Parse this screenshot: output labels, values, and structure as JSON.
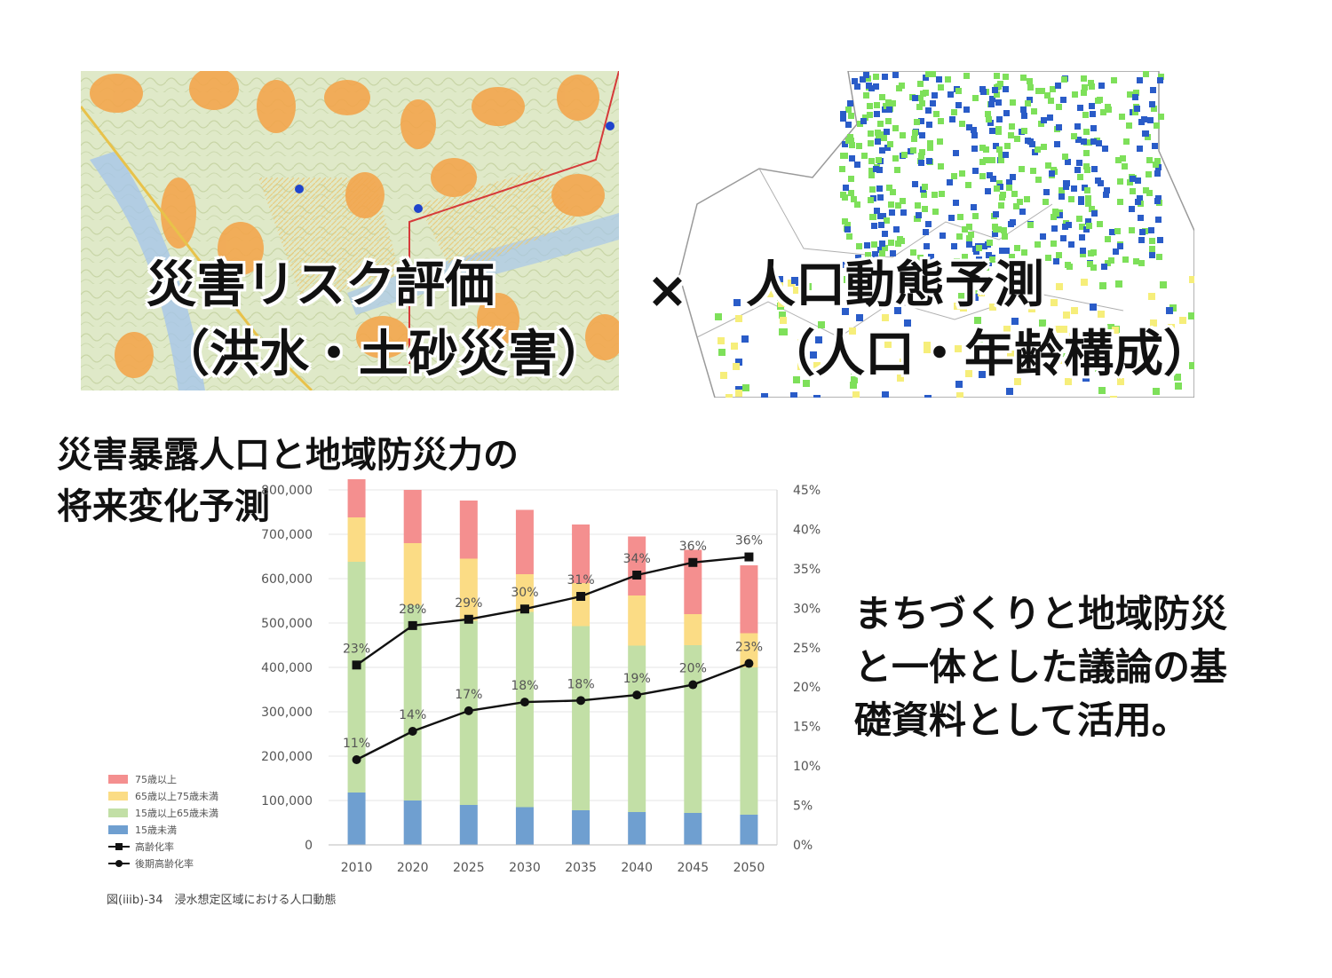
{
  "top": {
    "left_title": "災害リスク評価",
    "left_subtitle": "（洪水・土砂災害）",
    "operator": "×",
    "right_title": "人口動態予測",
    "right_subtitle": "（人口・年齢構成）"
  },
  "section_heading": {
    "line1": "災害暴露人口と地域防災力の",
    "line2": "将来変化予測"
  },
  "side_note": {
    "line1": "まちづくりと地域防災",
    "line2": "と一体とした議論の基",
    "line3": "礎資料として活用。"
  },
  "chart_data": {
    "type": "bar",
    "stacked": true,
    "categories": [
      "2010",
      "2020",
      "2025",
      "2030",
      "2035",
      "2040",
      "2045",
      "2050"
    ],
    "series": [
      {
        "name": "15歳未満",
        "color": "#6f9fd0",
        "values": [
          118000,
          100000,
          90000,
          85000,
          78000,
          74000,
          72000,
          68000
        ]
      },
      {
        "name": "15歳以上65歳未満",
        "color": "#c2dfa6",
        "values": [
          520000,
          440000,
          415000,
          440000,
          415000,
          375000,
          378000,
          332000
        ]
      },
      {
        "name": "65歳以上75歳未満",
        "color": "#fbdc85",
        "values": [
          100000,
          140000,
          140000,
          85000,
          97000,
          113000,
          70000,
          77000
        ]
      },
      {
        "name": "75歳以上",
        "color": "#f48f8f",
        "values": [
          92000,
          120000,
          131000,
          145000,
          132000,
          133000,
          145000,
          153000
        ]
      }
    ],
    "lines": [
      {
        "name": "高齢化率",
        "values": [
          22.8,
          27.8,
          28.6,
          29.9,
          31.5,
          34.2,
          35.8,
          36.5
        ],
        "labels": [
          "23%",
          "28%",
          "29%",
          "30%",
          "31%",
          "34%",
          "36%",
          "36%"
        ]
      },
      {
        "name": "後期高齢化率",
        "values": [
          10.8,
          14.4,
          17.0,
          18.1,
          18.3,
          19.0,
          20.3,
          23.0
        ],
        "labels": [
          "11%",
          "14%",
          "17%",
          "18%",
          "18%",
          "19%",
          "20%",
          "23%"
        ]
      }
    ],
    "y_left": {
      "min": 0,
      "max": 800000,
      "ticks": [
        "0",
        "100,000",
        "200,000",
        "300,000",
        "400,000",
        "500,000",
        "600,000",
        "700,000",
        "800,000"
      ]
    },
    "y_right": {
      "min": 0,
      "max": 45,
      "ticks": [
        "0%",
        "5%",
        "10%",
        "15%",
        "20%",
        "25%",
        "30%",
        "35%",
        "40%",
        "45%"
      ]
    },
    "legend": [
      "75歳以上",
      "65歳以上75歳未満",
      "15歳以上65歳未満",
      "15歳未満",
      "高齢化率",
      "後期高齢化率"
    ],
    "legend_position": "left",
    "caption": "図(iiib)-34　浸水想定区域における人口動態"
  },
  "colors": {
    "hazard_orange": "#f3a64d",
    "map_green": "#dfe9c8",
    "pop_green": "#7ee05a",
    "pop_blue": "#2a5cc8",
    "pop_yellow": "#f6ee7a"
  }
}
